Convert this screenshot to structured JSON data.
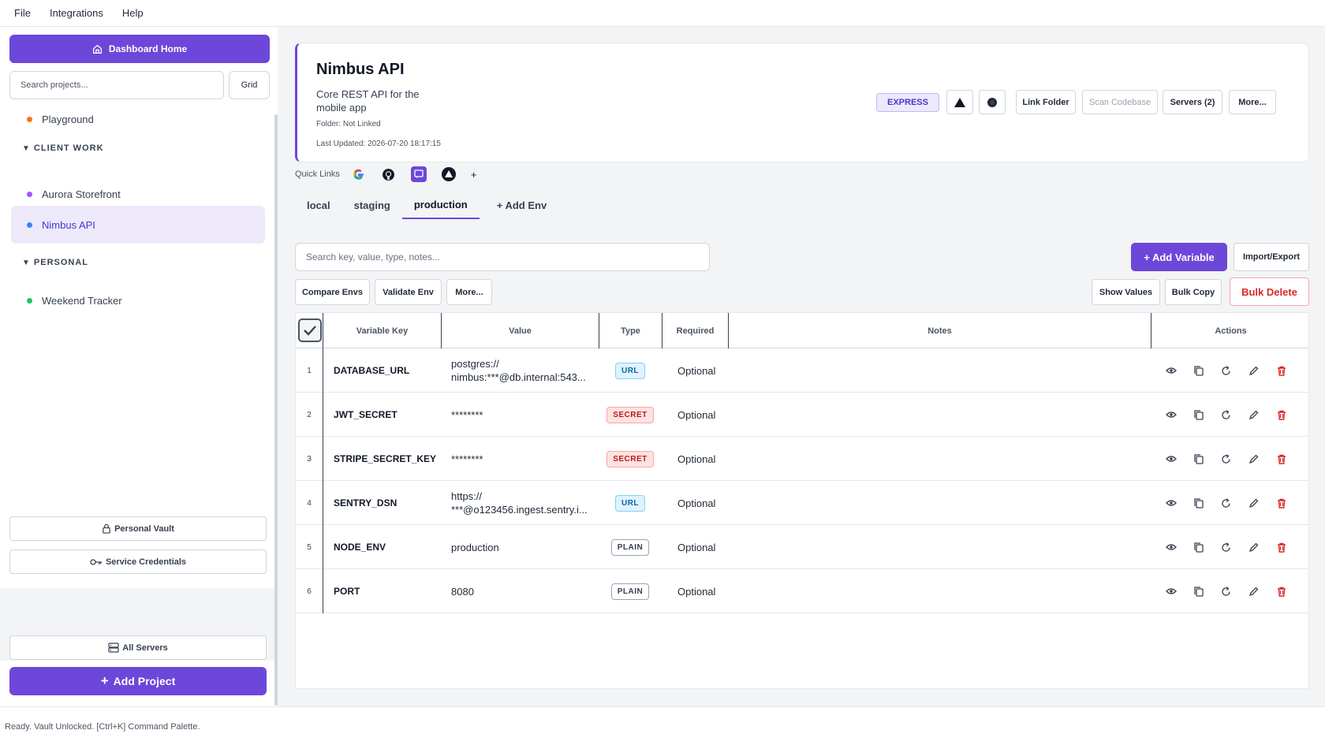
{
  "menu": [
    "File",
    "Integrations",
    "Help"
  ],
  "sidebar": {
    "dashboard_label": "Dashboard Home",
    "search_placeholder": "Search projects...",
    "grid_label": "Grid",
    "projects": [
      {
        "label": "Playground",
        "color": "#f97316"
      },
      {
        "group": "CLIENT WORK"
      },
      {
        "label": "Aurora Storefront",
        "color": "#a855f7"
      },
      {
        "label": "Nimbus API",
        "color": "#3b82f6",
        "active": true
      },
      {
        "group": "PERSONAL"
      },
      {
        "label": "Weekend Tracker",
        "color": "#22c55e"
      }
    ],
    "personal_vault": "Personal Vault",
    "service_credentials": "Service Credentials",
    "all_servers": "All Servers",
    "add_project": "Add Project"
  },
  "project": {
    "title": "Nimbus API",
    "description": "Core REST API for the mobile app",
    "folder": "Folder: Not Linked",
    "updated": "Last Updated: 2026-07-20 18:17:15",
    "framework": "EXPRESS",
    "buttons": {
      "link_folder": "Link Folder",
      "scan_codebase": "Scan Codebase",
      "servers": "Servers (2)",
      "more": "More..."
    }
  },
  "quick_links": {
    "label": "Quick Links",
    "add": "+"
  },
  "tabs": [
    "local",
    "staging",
    "production",
    "+ Add Env"
  ],
  "active_tab": "production",
  "toolbar": {
    "search_placeholder": "Search key, value, type, notes...",
    "add_variable": "+ Add Variable",
    "import_export": "Import/Export",
    "compare": "Compare Envs",
    "validate": "Validate Env",
    "more": "More...",
    "show_values": "Show Values",
    "bulk_copy": "Bulk Copy",
    "bulk_delete": "Bulk Delete"
  },
  "table": {
    "headers": {
      "key": "Variable Key",
      "value": "Value",
      "type": "Type",
      "required": "Required",
      "notes": "Notes",
      "actions": "Actions"
    },
    "rows": [
      {
        "n": "1",
        "key": "DATABASE_URL",
        "value": "postgres:// nimbus:***@db.internal:543...",
        "type": "URL",
        "required": "Optional"
      },
      {
        "n": "2",
        "key": "JWT_SECRET",
        "value": "********",
        "type": "SECRET",
        "required": "Optional"
      },
      {
        "n": "3",
        "key": "STRIPE_SECRET_KEY",
        "value": "********",
        "type": "SECRET",
        "required": "Optional"
      },
      {
        "n": "4",
        "key": "SENTRY_DSN",
        "value": "https:// ***@o123456.ingest.sentry.i...",
        "type": "URL",
        "required": "Optional"
      },
      {
        "n": "5",
        "key": "NODE_ENV",
        "value": "production",
        "type": "PLAIN",
        "required": "Optional"
      },
      {
        "n": "6",
        "key": "PORT",
        "value": "8080",
        "type": "PLAIN",
        "required": "Optional"
      }
    ]
  },
  "status": "Ready. Vault Unlocked. [Ctrl+K] Command Palette.",
  "colors": {
    "accent": "#6d47d9",
    "danger": "#dc2626"
  }
}
